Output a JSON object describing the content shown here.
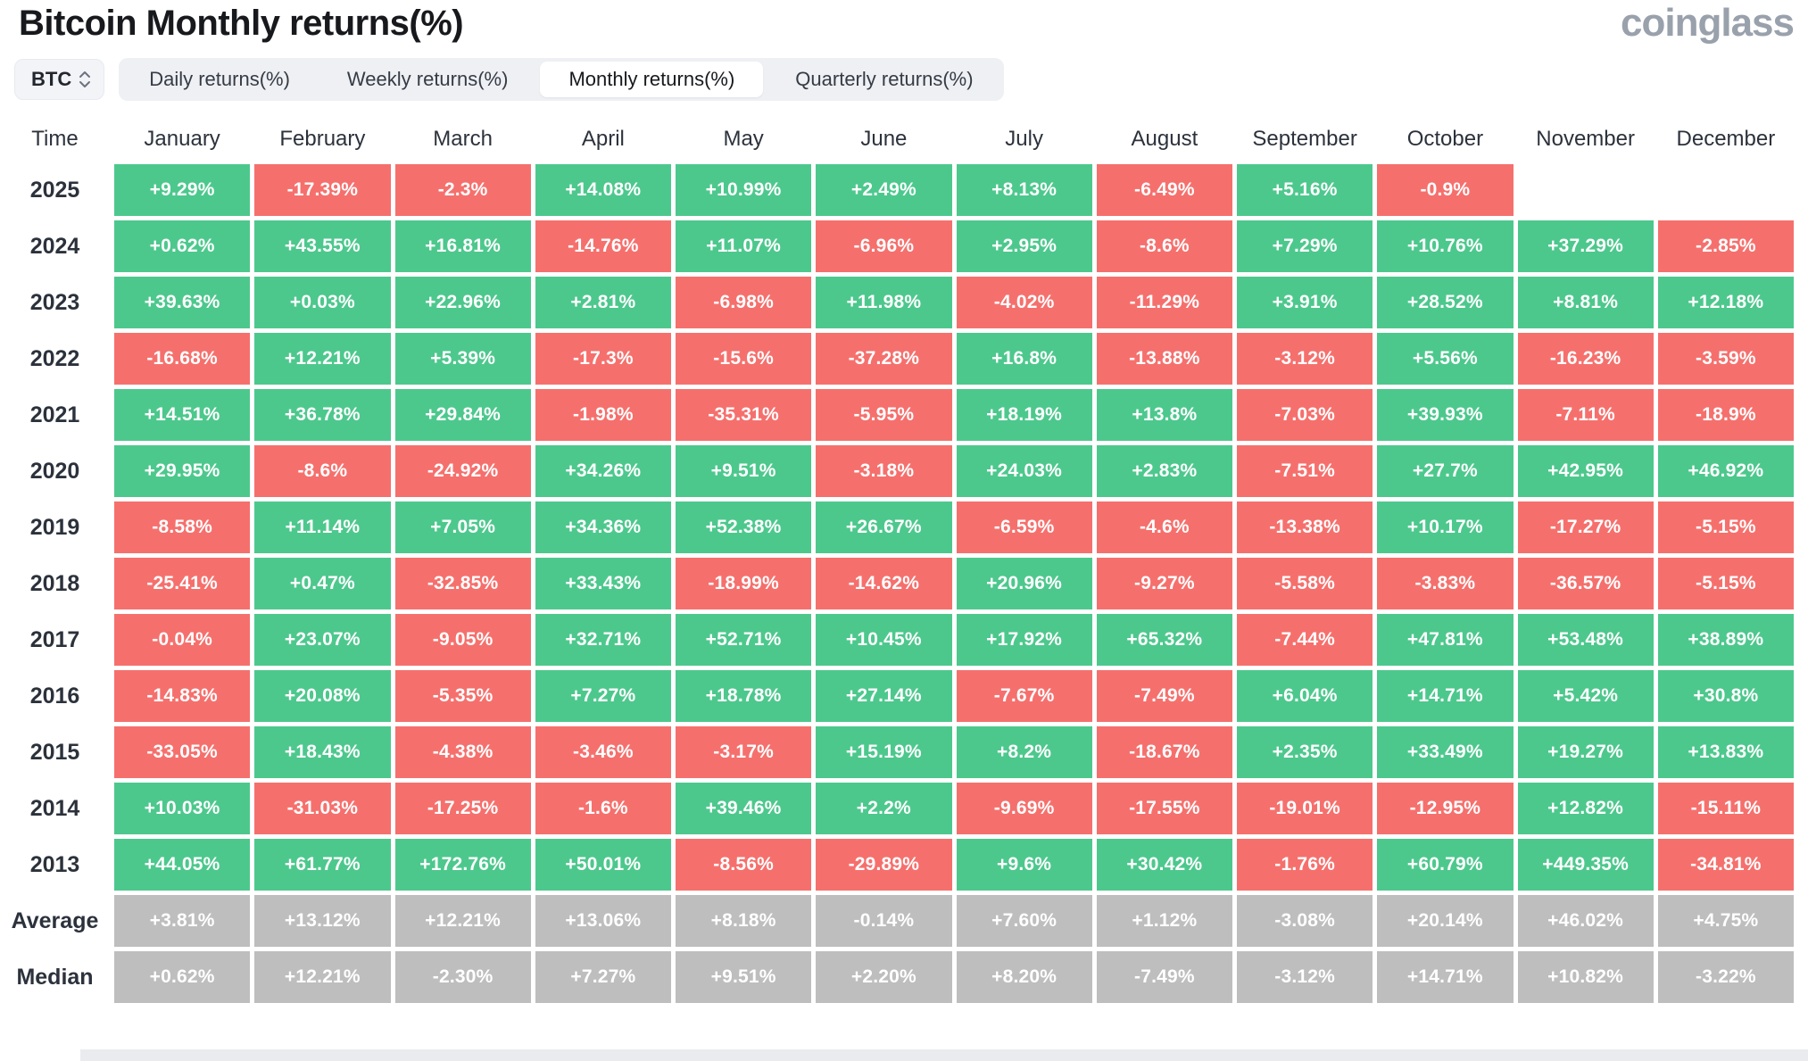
{
  "header": {
    "title": "Bitcoin Monthly returns(%)",
    "logo_text": "coinglass"
  },
  "toolbar": {
    "coin_selector": "BTC",
    "tabs": [
      {
        "label": "Daily returns(%)",
        "active": false
      },
      {
        "label": "Weekly returns(%)",
        "active": false
      },
      {
        "label": "Monthly returns(%)",
        "active": true
      },
      {
        "label": "Quarterly returns(%)",
        "active": false
      }
    ]
  },
  "chart_data": {
    "type": "heatmap",
    "title": "Bitcoin Monthly returns(%)",
    "colors": {
      "positive": "#4dc88d",
      "negative": "#f5706d",
      "stat": "#bebebe"
    },
    "columns": [
      "Time",
      "January",
      "February",
      "March",
      "April",
      "May",
      "June",
      "July",
      "August",
      "September",
      "October",
      "November",
      "December"
    ],
    "rows": [
      {
        "label": "2025",
        "type": "year",
        "values": [
          "+9.29%",
          "-17.39%",
          "-2.3%",
          "+14.08%",
          "+10.99%",
          "+2.49%",
          "+8.13%",
          "-6.49%",
          "+5.16%",
          "-0.9%",
          "",
          ""
        ]
      },
      {
        "label": "2024",
        "type": "year",
        "values": [
          "+0.62%",
          "+43.55%",
          "+16.81%",
          "-14.76%",
          "+11.07%",
          "-6.96%",
          "+2.95%",
          "-8.6%",
          "+7.29%",
          "+10.76%",
          "+37.29%",
          "-2.85%"
        ]
      },
      {
        "label": "2023",
        "type": "year",
        "values": [
          "+39.63%",
          "+0.03%",
          "+22.96%",
          "+2.81%",
          "-6.98%",
          "+11.98%",
          "-4.02%",
          "-11.29%",
          "+3.91%",
          "+28.52%",
          "+8.81%",
          "+12.18%"
        ]
      },
      {
        "label": "2022",
        "type": "year",
        "values": [
          "-16.68%",
          "+12.21%",
          "+5.39%",
          "-17.3%",
          "-15.6%",
          "-37.28%",
          "+16.8%",
          "-13.88%",
          "-3.12%",
          "+5.56%",
          "-16.23%",
          "-3.59%"
        ]
      },
      {
        "label": "2021",
        "type": "year",
        "values": [
          "+14.51%",
          "+36.78%",
          "+29.84%",
          "-1.98%",
          "-35.31%",
          "-5.95%",
          "+18.19%",
          "+13.8%",
          "-7.03%",
          "+39.93%",
          "-7.11%",
          "-18.9%"
        ]
      },
      {
        "label": "2020",
        "type": "year",
        "values": [
          "+29.95%",
          "-8.6%",
          "-24.92%",
          "+34.26%",
          "+9.51%",
          "-3.18%",
          "+24.03%",
          "+2.83%",
          "-7.51%",
          "+27.7%",
          "+42.95%",
          "+46.92%"
        ]
      },
      {
        "label": "2019",
        "type": "year",
        "values": [
          "-8.58%",
          "+11.14%",
          "+7.05%",
          "+34.36%",
          "+52.38%",
          "+26.67%",
          "-6.59%",
          "-4.6%",
          "-13.38%",
          "+10.17%",
          "-17.27%",
          "-5.15%"
        ]
      },
      {
        "label": "2018",
        "type": "year",
        "values": [
          "-25.41%",
          "+0.47%",
          "-32.85%",
          "+33.43%",
          "-18.99%",
          "-14.62%",
          "+20.96%",
          "-9.27%",
          "-5.58%",
          "-3.83%",
          "-36.57%",
          "-5.15%"
        ]
      },
      {
        "label": "2017",
        "type": "year",
        "values": [
          "-0.04%",
          "+23.07%",
          "-9.05%",
          "+32.71%",
          "+52.71%",
          "+10.45%",
          "+17.92%",
          "+65.32%",
          "-7.44%",
          "+47.81%",
          "+53.48%",
          "+38.89%"
        ]
      },
      {
        "label": "2016",
        "type": "year",
        "values": [
          "-14.83%",
          "+20.08%",
          "-5.35%",
          "+7.27%",
          "+18.78%",
          "+27.14%",
          "-7.67%",
          "-7.49%",
          "+6.04%",
          "+14.71%",
          "+5.42%",
          "+30.8%"
        ]
      },
      {
        "label": "2015",
        "type": "year",
        "values": [
          "-33.05%",
          "+18.43%",
          "-4.38%",
          "-3.46%",
          "-3.17%",
          "+15.19%",
          "+8.2%",
          "-18.67%",
          "+2.35%",
          "+33.49%",
          "+19.27%",
          "+13.83%"
        ]
      },
      {
        "label": "2014",
        "type": "year",
        "values": [
          "+10.03%",
          "-31.03%",
          "-17.25%",
          "-1.6%",
          "+39.46%",
          "+2.2%",
          "-9.69%",
          "-17.55%",
          "-19.01%",
          "-12.95%",
          "+12.82%",
          "-15.11%"
        ]
      },
      {
        "label": "2013",
        "type": "year",
        "values": [
          "+44.05%",
          "+61.77%",
          "+172.76%",
          "+50.01%",
          "-8.56%",
          "-29.89%",
          "+9.6%",
          "+30.42%",
          "-1.76%",
          "+60.79%",
          "+449.35%",
          "-34.81%"
        ]
      },
      {
        "label": "Average",
        "type": "stat",
        "values": [
          "+3.81%",
          "+13.12%",
          "+12.21%",
          "+13.06%",
          "+8.18%",
          "-0.14%",
          "+7.60%",
          "+1.12%",
          "-3.08%",
          "+20.14%",
          "+46.02%",
          "+4.75%"
        ]
      },
      {
        "label": "Median",
        "type": "stat",
        "values": [
          "+0.62%",
          "+12.21%",
          "-2.30%",
          "+7.27%",
          "+9.51%",
          "+2.20%",
          "+8.20%",
          "-7.49%",
          "-3.12%",
          "+14.71%",
          "+10.82%",
          "-3.22%"
        ]
      }
    ]
  }
}
